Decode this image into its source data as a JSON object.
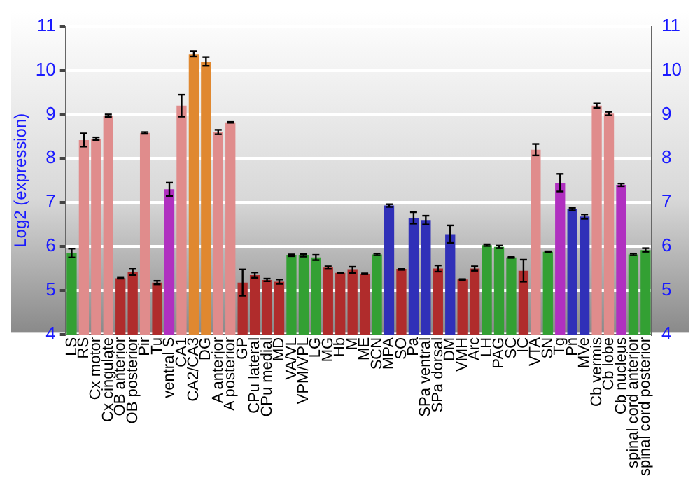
{
  "chart_data": {
    "type": "bar",
    "ylabel": "Log2 (expression)",
    "categories": [
      "LS",
      "RS",
      "Cx motor",
      "Cx cingulate",
      "OB anterior",
      "OB posterior",
      "Pir",
      "Tu",
      "ventral S",
      "CA1",
      "CA2/CA3",
      "DG",
      "A anterior",
      "A posterior",
      "GP",
      "CPu lateral",
      "CPu medial",
      "MD",
      "VA/VL",
      "VPM/VPL",
      "LG",
      "MG",
      "Hb",
      "M",
      "ME",
      "SCN",
      "MPA",
      "SO",
      "Pa",
      "SPa ventral",
      "SPa dorsal",
      "DM",
      "VMH",
      "Arc",
      "LH",
      "PAG",
      "SC",
      "IC",
      "VTA",
      "SN",
      "Tg",
      "Pn",
      "MVe",
      "Cb vermis",
      "Cb lobe",
      "Cb nucleus",
      "spinal cord anterior",
      "spinal cord posterior"
    ],
    "values": [
      5.85,
      8.42,
      8.45,
      8.97,
      5.28,
      5.42,
      8.58,
      5.18,
      7.3,
      9.2,
      10.37,
      10.2,
      8.6,
      8.82,
      5.18,
      5.35,
      5.24,
      5.2,
      5.8,
      5.8,
      5.75,
      5.52,
      5.4,
      5.47,
      5.38,
      5.82,
      6.93,
      5.48,
      6.65,
      6.6,
      5.5,
      6.28,
      5.25,
      5.5,
      6.03,
      5.99,
      5.75,
      5.45,
      8.2,
      5.88,
      7.45,
      6.85,
      6.68,
      9.2,
      9.02,
      7.4,
      5.82,
      5.92
    ],
    "errors": [
      0.1,
      0.15,
      0.03,
      0.03,
      0.01,
      0.07,
      0.02,
      0.04,
      0.15,
      0.25,
      0.06,
      0.1,
      0.05,
      0.01,
      0.3,
      0.06,
      0.03,
      0.05,
      0.02,
      0.03,
      0.06,
      0.03,
      0.01,
      0.07,
      0.01,
      0.02,
      0.03,
      0.01,
      0.13,
      0.1,
      0.07,
      0.2,
      0.01,
      0.05,
      0.02,
      0.03,
      0.01,
      0.25,
      0.13,
      0.01,
      0.2,
      0.03,
      0.05,
      0.05,
      0.04,
      0.03,
      0.02,
      0.04
    ],
    "colors": [
      "#33a033",
      "#e08c8c",
      "#e08c8c",
      "#e08c8c",
      "#b02c2c",
      "#b02c2c",
      "#e08c8c",
      "#b02c2c",
      "#b030c0",
      "#e08c8c",
      "#e08830",
      "#e08830",
      "#e08c8c",
      "#e08c8c",
      "#b02c2c",
      "#b02c2c",
      "#b02c2c",
      "#b02c2c",
      "#33a033",
      "#33a033",
      "#33a033",
      "#b02c2c",
      "#b02c2c",
      "#b02c2c",
      "#b02c2c",
      "#33a033",
      "#3030b8",
      "#b02c2c",
      "#3030b8",
      "#3030b8",
      "#b02c2c",
      "#3030b8",
      "#b02c2c",
      "#b02c2c",
      "#33a033",
      "#33a033",
      "#33a033",
      "#b02c2c",
      "#e08c8c",
      "#33a033",
      "#b030c0",
      "#3030b8",
      "#3030b8",
      "#e08c8c",
      "#e08c8c",
      "#b030c0",
      "#33a033",
      "#33a033"
    ],
    "ylim": [
      4,
      11
    ],
    "yticks": [
      4,
      5,
      6,
      7,
      8,
      9,
      10,
      11
    ],
    "y2lim": [
      4,
      11
    ],
    "y2ticks": [
      4,
      5,
      6,
      7,
      8,
      9,
      10,
      11
    ],
    "grid": "y",
    "legend": false
  }
}
